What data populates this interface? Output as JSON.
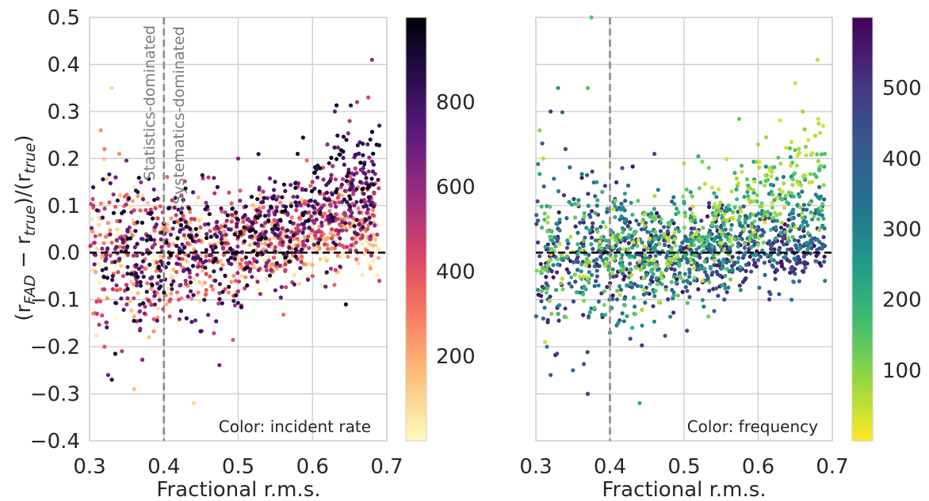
{
  "chart_data": [
    {
      "type": "scatter",
      "xlabel": "Fractional r.m.s.",
      "ylabel": "(r_FAD − r_true)/(r_true)",
      "ylabel_parts": {
        "open": "(r",
        "sub1": "FAD",
        "minus": " − r",
        "sub2": "true",
        "mid": ")/(r",
        "sub3": "true",
        "close": ")"
      },
      "xlim": [
        0.3,
        0.7
      ],
      "ylim": [
        -0.4,
        0.5
      ],
      "xticks": [
        "0.3",
        "0.4",
        "0.5",
        "0.6",
        "0.7"
      ],
      "yticks": [
        "−0.4",
        "−0.3",
        "−0.2",
        "−0.1",
        "0.0",
        "0.1",
        "0.2",
        "0.3",
        "0.4",
        "0.5"
      ],
      "grid": true,
      "reference_lines": {
        "horizontal_y": 0.0,
        "vertical_x": 0.4
      },
      "annotation": "Color: incident rate",
      "region_labels": [
        "Statistics-dominated",
        "Systematics-dominated"
      ],
      "colormap": "magma_r",
      "colorbar": {
        "min": 0,
        "max": 1000,
        "ticks": [
          "200",
          "400",
          "600",
          "800"
        ]
      },
      "points": [
        [
          0.305,
          0.1,
          500
        ],
        [
          0.31,
          0.09,
          850
        ],
        [
          0.31,
          -0.13,
          500
        ],
        [
          0.315,
          0.26,
          250
        ],
        [
          0.32,
          -0.2,
          400
        ],
        [
          0.32,
          0.22,
          300
        ],
        [
          0.325,
          -0.26,
          700
        ],
        [
          0.33,
          0.35,
          100
        ],
        [
          0.33,
          -0.27,
          900
        ],
        [
          0.34,
          0.21,
          250
        ],
        [
          0.35,
          -0.11,
          550
        ],
        [
          0.36,
          0.09,
          450
        ],
        [
          0.36,
          -0.29,
          150
        ],
        [
          0.37,
          -0.03,
          600
        ],
        [
          0.38,
          -0.18,
          150
        ],
        [
          0.39,
          0.06,
          700
        ],
        [
          0.4,
          0.04,
          800
        ],
        [
          0.42,
          -0.1,
          400
        ],
        [
          0.44,
          -0.32,
          100
        ],
        [
          0.46,
          0.16,
          500
        ],
        [
          0.5,
          0.2,
          650
        ],
        [
          0.55,
          -0.08,
          750
        ],
        [
          0.58,
          0.21,
          900
        ],
        [
          0.6,
          -0.05,
          400
        ],
        [
          0.62,
          0.23,
          600
        ],
        [
          0.63,
          0.3,
          700
        ],
        [
          0.645,
          -0.11,
          900
        ],
        [
          0.65,
          0.28,
          550
        ],
        [
          0.66,
          0.32,
          500
        ],
        [
          0.675,
          0.33,
          450
        ],
        [
          0.68,
          0.41,
          600
        ],
        [
          0.69,
          0.27,
          800
        ],
        [
          0.69,
          -0.06,
          500
        ]
      ]
    },
    {
      "type": "scatter",
      "xlabel": "Fractional r.m.s.",
      "xlim": [
        0.3,
        0.7
      ],
      "ylim": [
        -0.4,
        0.5
      ],
      "xticks": [
        "0.3",
        "0.4",
        "0.5",
        "0.6",
        "0.7"
      ],
      "grid": true,
      "reference_lines": {
        "horizontal_y": 0.0,
        "vertical_x": 0.4
      },
      "annotation": "Color: frequency",
      "colormap": "viridis_r",
      "colorbar": {
        "min": 0,
        "max": 600,
        "ticks": [
          "100",
          "200",
          "300",
          "400",
          "500"
        ]
      },
      "points": [
        [
          0.305,
          0.26,
          100
        ],
        [
          0.31,
          0.2,
          60
        ],
        [
          0.31,
          -0.14,
          350
        ],
        [
          0.315,
          -0.2,
          300
        ],
        [
          0.32,
          0.3,
          500
        ],
        [
          0.32,
          -0.26,
          400
        ],
        [
          0.33,
          0.35,
          250
        ],
        [
          0.33,
          -0.13,
          200
        ],
        [
          0.34,
          0.22,
          450
        ],
        [
          0.35,
          -0.25,
          350
        ],
        [
          0.37,
          0.35,
          150
        ],
        [
          0.37,
          -0.3,
          500
        ],
        [
          0.375,
          0.5,
          150
        ],
        [
          0.38,
          0.12,
          400
        ],
        [
          0.4,
          -0.17,
          250
        ],
        [
          0.42,
          0.09,
          350
        ],
        [
          0.44,
          -0.32,
          200
        ],
        [
          0.46,
          0.21,
          450
        ],
        [
          0.5,
          0.19,
          60
        ],
        [
          0.55,
          -0.07,
          300
        ],
        [
          0.6,
          0.23,
          80
        ],
        [
          0.62,
          -0.03,
          400
        ],
        [
          0.645,
          -0.1,
          350
        ],
        [
          0.65,
          0.36,
          40
        ],
        [
          0.66,
          0.3,
          80
        ],
        [
          0.68,
          0.41,
          50
        ],
        [
          0.69,
          0.21,
          150
        ],
        [
          0.69,
          -0.06,
          300
        ]
      ]
    }
  ]
}
